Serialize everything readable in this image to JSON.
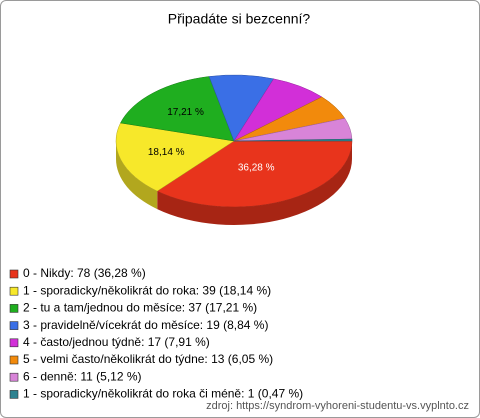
{
  "chart_data": {
    "type": "pie3d",
    "title": "Připadáte si bezcenní?",
    "categories": [
      "0 - Nikdy: 78 (36,28 %)",
      "1 - sporadicky/několikrát do roka: 39 (18,14 %)",
      "2 - tu a tam/jednou do měsíce: 37 (17,21 %)",
      "3 - pravidelně/vícekrát do měsíce: 19 (8,84 %)",
      "4 - často/jednou týdně: 17 (7,91 %)",
      "5 - velmi často/několikrát do týdne: 13 (6,05 %)",
      "6 - denně: 11 (5,12 %)",
      "1 - sporadicky/několikrát do roka či méně: 1 (0,47 %)"
    ],
    "values": [
      36.28,
      18.14,
      17.21,
      8.84,
      7.91,
      6.05,
      5.12,
      0.47
    ],
    "value_labels": [
      "36,28 %",
      "18,14 %",
      "17,21 %",
      null,
      null,
      null,
      null,
      null
    ],
    "colors": [
      "#e8341c",
      "#f7e82a",
      "#1fae1f",
      "#3a6fe6",
      "#d22fd8",
      "#f28a0c",
      "#d884d8",
      "#2e8290"
    ],
    "source": "zdroj: https://syndrom-vyhoreni-studentu-vs.vyplnto.cz"
  }
}
